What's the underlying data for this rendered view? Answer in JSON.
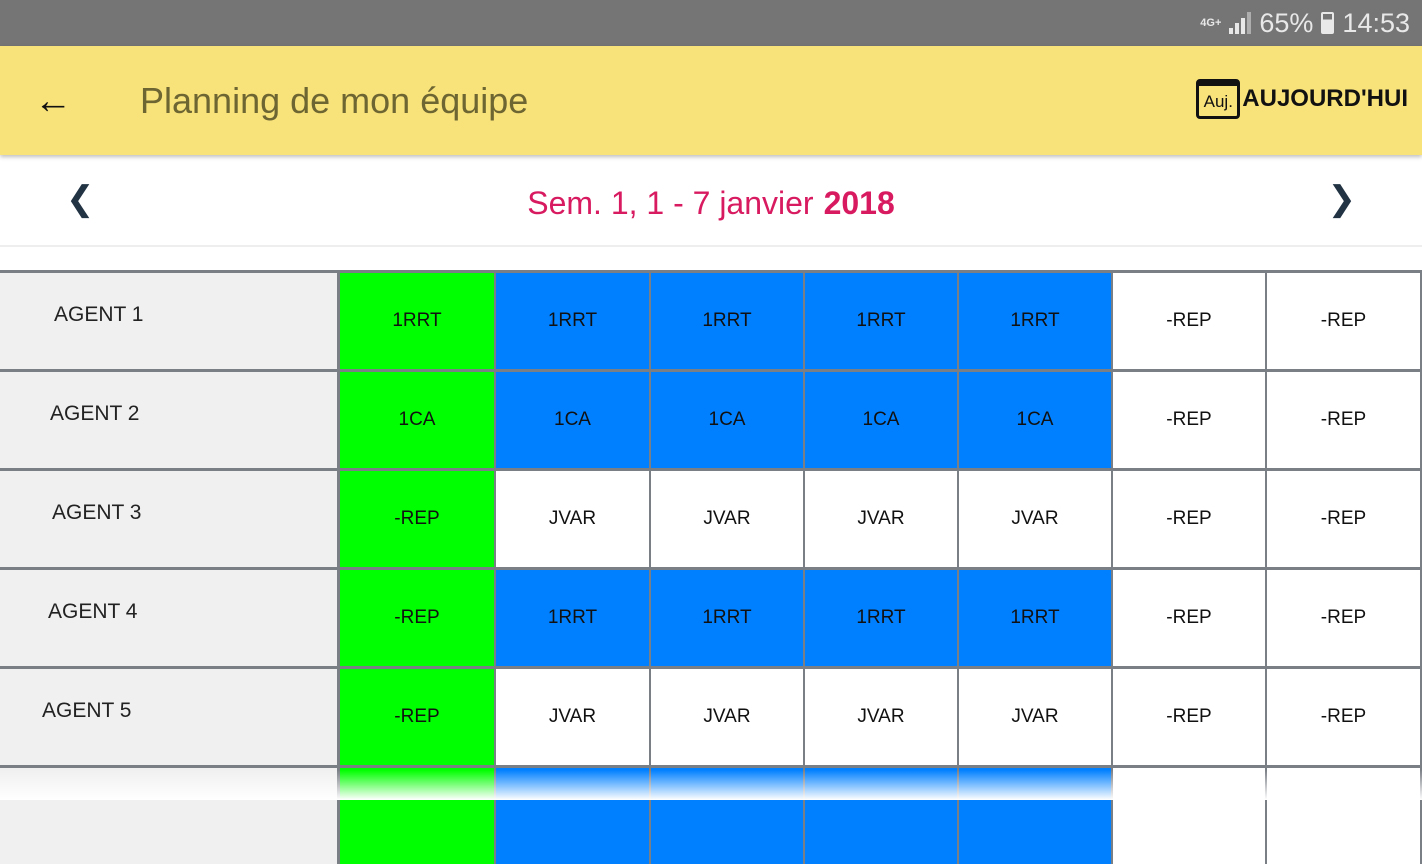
{
  "status_bar": {
    "network": "4G+",
    "battery": "65%",
    "time": "14:53"
  },
  "app_bar": {
    "back_icon": "arrow-left-icon",
    "title": "Planning de mon équipe",
    "today_icon_text": "Auj.",
    "today_label": "AUJOURD'HUI"
  },
  "week_nav": {
    "label": "Sem. 1, 1 - 7 janvier",
    "year": "2018"
  },
  "colors": {
    "green": "#00ff00",
    "blue": "#0080ff",
    "white": "#ffffff",
    "appbar": "#f8e27a",
    "accent": "#d81b60"
  },
  "rows": [
    {
      "agent": "AGENT 1",
      "cells": [
        {
          "code": "1RRT",
          "color": "green"
        },
        {
          "code": "1RRT",
          "color": "blue"
        },
        {
          "code": "1RRT",
          "color": "blue"
        },
        {
          "code": "1RRT",
          "color": "blue"
        },
        {
          "code": "1RRT",
          "color": "blue"
        },
        {
          "code": "-REP",
          "color": "white"
        },
        {
          "code": "-REP",
          "color": "white"
        }
      ]
    },
    {
      "agent": "AGENT 2",
      "cells": [
        {
          "code": "1CA",
          "color": "green"
        },
        {
          "code": "1CA",
          "color": "blue"
        },
        {
          "code": "1CA",
          "color": "blue"
        },
        {
          "code": "1CA",
          "color": "blue"
        },
        {
          "code": "1CA",
          "color": "blue"
        },
        {
          "code": "-REP",
          "color": "white"
        },
        {
          "code": "-REP",
          "color": "white"
        }
      ]
    },
    {
      "agent": "AGENT 3",
      "cells": [
        {
          "code": "-REP",
          "color": "green"
        },
        {
          "code": "JVAR",
          "color": "white"
        },
        {
          "code": "JVAR",
          "color": "white"
        },
        {
          "code": "JVAR",
          "color": "white"
        },
        {
          "code": "JVAR",
          "color": "white"
        },
        {
          "code": "-REP",
          "color": "white"
        },
        {
          "code": "-REP",
          "color": "white"
        }
      ]
    },
    {
      "agent": "AGENT 4",
      "cells": [
        {
          "code": "-REP",
          "color": "green"
        },
        {
          "code": "1RRT",
          "color": "blue"
        },
        {
          "code": "1RRT",
          "color": "blue"
        },
        {
          "code": "1RRT",
          "color": "blue"
        },
        {
          "code": "1RRT",
          "color": "blue"
        },
        {
          "code": "-REP",
          "color": "white"
        },
        {
          "code": "-REP",
          "color": "white"
        }
      ]
    },
    {
      "agent": "AGENT 5",
      "cells": [
        {
          "code": "-REP",
          "color": "green"
        },
        {
          "code": "JVAR",
          "color": "white"
        },
        {
          "code": "JVAR",
          "color": "white"
        },
        {
          "code": "JVAR",
          "color": "white"
        },
        {
          "code": "JVAR",
          "color": "white"
        },
        {
          "code": "-REP",
          "color": "white"
        },
        {
          "code": "-REP",
          "color": "white"
        }
      ]
    },
    {
      "agent": "",
      "cells": [
        {
          "code": "",
          "color": "green"
        },
        {
          "code": "",
          "color": "blue"
        },
        {
          "code": "",
          "color": "blue"
        },
        {
          "code": "",
          "color": "blue"
        },
        {
          "code": "",
          "color": "blue"
        },
        {
          "code": "",
          "color": "white"
        },
        {
          "code": "",
          "color": "white"
        }
      ]
    }
  ]
}
